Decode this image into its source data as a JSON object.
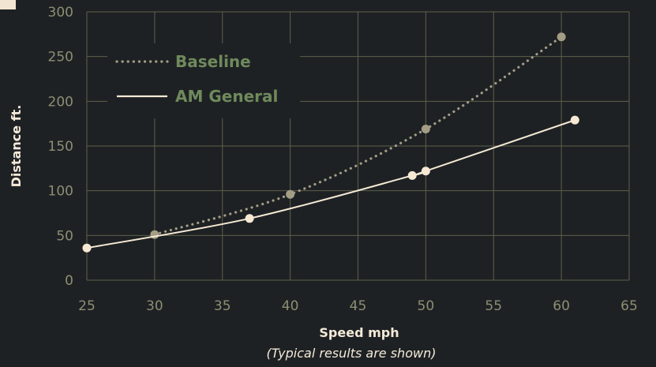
{
  "chart_data": {
    "type": "line",
    "xlabel": "Speed mph",
    "ylabel": "Distance ft.",
    "note": "(Typical results are shown)",
    "xlim": [
      25,
      65
    ],
    "ylim": [
      0,
      300
    ],
    "xticks": [
      25,
      30,
      35,
      40,
      45,
      50,
      55,
      60,
      65
    ],
    "yticks": [
      0,
      50,
      100,
      150,
      200,
      250,
      300
    ],
    "grid": true,
    "legend": "top-left",
    "series": [
      {
        "name": "Baseline",
        "style": "dotted",
        "color": "#a39d86",
        "points": [
          [
            30,
            51
          ],
          [
            40,
            96
          ],
          [
            50,
            169
          ],
          [
            60,
            272
          ]
        ]
      },
      {
        "name": "AM General",
        "style": "solid",
        "color": "#f5e9d3",
        "points": [
          [
            25,
            36
          ],
          [
            37,
            69
          ],
          [
            49,
            117
          ],
          [
            50,
            122
          ],
          [
            61,
            179
          ]
        ]
      }
    ]
  },
  "colors": {
    "background": "#1e2124",
    "grid": "#5d6148",
    "tick_text": "#8b8f72",
    "legend_text": "#6f8a5c"
  }
}
